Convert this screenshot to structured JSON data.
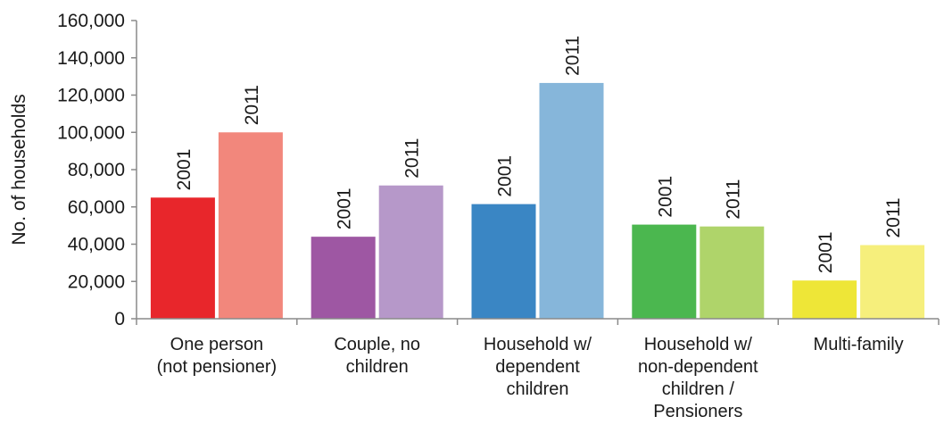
{
  "chart_data": {
    "type": "bar",
    "ylabel": "No. of households",
    "ylim": [
      0,
      160000
    ],
    "yticks": [
      0,
      20000,
      40000,
      60000,
      80000,
      100000,
      120000,
      140000,
      160000
    ],
    "ytick_labels": [
      "0",
      "20,000",
      "40,000",
      "60,000",
      "80,000",
      "100,000",
      "120,000",
      "140,000",
      "160,000"
    ],
    "categories": [
      [
        "One person",
        "(not pensioner)"
      ],
      [
        "Couple, no",
        "children"
      ],
      [
        "Household w/",
        "dependent",
        "children"
      ],
      [
        "Household w/",
        "non-dependent",
        "children /",
        "Pensioners"
      ],
      [
        "Multi-family"
      ]
    ],
    "series": [
      {
        "name": "2001",
        "values": [
          65000,
          44000,
          61500,
          50500,
          20500
        ]
      },
      {
        "name": "2011",
        "values": [
          100000,
          71500,
          126500,
          49500,
          39500
        ]
      }
    ],
    "bar_labels": [
      "2001",
      "2011"
    ],
    "colors": [
      [
        "#e8262b",
        "#f2877c"
      ],
      [
        "#9e57a3",
        "#b698c9"
      ],
      [
        "#3a86c4",
        "#86b6da"
      ],
      [
        "#4bb74f",
        "#afd46a"
      ],
      [
        "#eee637",
        "#f6ef7c"
      ]
    ],
    "grid": false,
    "legend": "none"
  }
}
